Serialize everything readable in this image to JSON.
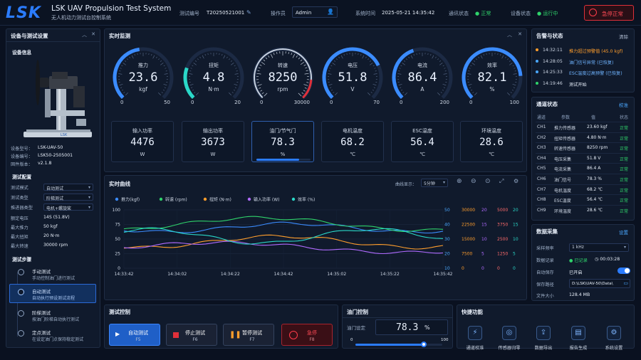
{
  "header": {
    "logo": "LSK",
    "title_en": "LSK UAV Propulsion Test System",
    "title_cn": "无人机动力测试台控制系统",
    "test_no_label": "测试编号",
    "test_no": "T20250521001",
    "operator_label": "操作员",
    "operator": "Admin",
    "systime_label": "系统时间",
    "systime": "2025-05-21  14:35:42",
    "comm_label": "通讯状态",
    "comm_value": "● 正常",
    "device_label": "设备状态",
    "device_value": "● 运行中",
    "estop": "急停正常"
  },
  "left": {
    "title": "设备与测试设置",
    "devinfo": "设备信息",
    "model_label": "设备型号：",
    "model": "LSK-UAV-50",
    "sn_label": "设备编号：",
    "sn": "LSK50-2505001",
    "fw_label": "固件版本：",
    "fw": "v2.1.8",
    "config_title": "测试配置",
    "cfg": [
      {
        "k": "测试模式",
        "v": "自动测试"
      },
      {
        "k": "测试类型",
        "v": "阶梯测试"
      },
      {
        "k": "推进器类型",
        "v": "电机+螺旋桨"
      }
    ],
    "rated": [
      {
        "k": "额定电压",
        "v": "14S (51.8V)"
      },
      {
        "k": "最大推力",
        "v": "50 kgf"
      },
      {
        "k": "最大扭矩",
        "v": "20 N·m"
      },
      {
        "k": "最大转速",
        "v": "30000 rpm"
      }
    ],
    "steps_title": "测试步骤",
    "steps": [
      {
        "a": "手动测试",
        "d": "手动控制油门进行测试"
      },
      {
        "a": "自动测试",
        "d": "自动执行预设测试流程"
      },
      {
        "a": "阶梯测试",
        "d": "按油门阶梯自动执行测试"
      },
      {
        "a": "定点测试",
        "d": "在设定油门点保持稳定测试"
      }
    ]
  },
  "monitor": {
    "title": "实时监测",
    "gauges": [
      {
        "t": "推力",
        "v": "23.6",
        "u": "kgf",
        "min": "0",
        "max": "50",
        "frac": 0.472,
        "color": "#3b8cff"
      },
      {
        "t": "扭矩",
        "v": "4.8",
        "u": "N·m",
        "min": "0",
        "max": "20",
        "frac": 0.24,
        "color": "#2ad8c8"
      },
      {
        "t": "转速",
        "v": "8250",
        "u": "rpm",
        "min": "0",
        "max": "30000",
        "frac": 0.275,
        "color": "#c8d2e0"
      },
      {
        "t": "电压",
        "v": "51.8",
        "u": "V",
        "min": "0",
        "max": "70",
        "frac": 0.74,
        "color": "#3b8cff"
      },
      {
        "t": "电流",
        "v": "86.4",
        "u": "A",
        "min": "0",
        "max": "200",
        "frac": 0.432,
        "color": "#3b8cff"
      },
      {
        "t": "效率",
        "v": "82.1",
        "u": "%",
        "min": "0",
        "max": "100",
        "frac": 0.821,
        "color": "#3b8cff"
      }
    ],
    "cards": [
      {
        "t": "输入功率",
        "v": "4476",
        "u": "W"
      },
      {
        "t": "输出功率",
        "v": "3673",
        "u": "W"
      },
      {
        "t": "油门/节气门",
        "v": "78.3",
        "u": "%",
        "bar": 0.783
      },
      {
        "t": "电机温度",
        "v": "68.2",
        "u": "℃"
      },
      {
        "t": "ESC温度",
        "v": "56.4",
        "u": "℃"
      },
      {
        "t": "环境温度",
        "v": "28.6",
        "u": "℃"
      }
    ]
  },
  "curve": {
    "title": "实时曲线",
    "display_label": "曲线显示：",
    "range": "5分钟",
    "legend": [
      "推力(kgf)",
      "转速 (rpm)",
      "扭矩 (N·m)",
      "输入功率 (W)",
      "效率 (%)"
    ],
    "legend_colors": [
      "#3b8cff",
      "#2fd36b",
      "#ff9e2c",
      "#b06bff",
      "#2ad8c8"
    ],
    "yl": [
      "100",
      "75",
      "50",
      "25",
      "0"
    ],
    "xt": [
      "14:33:42",
      "14:34:02",
      "14:34:22",
      "14:34:42",
      "14:35:02",
      "14:35:22",
      "14:35:42"
    ],
    "r1": [
      "50",
      "40",
      "30",
      "20",
      "10"
    ],
    "r2": [
      "30000",
      "22500",
      "15000",
      "7500",
      "0"
    ],
    "r3": [
      "20",
      "15",
      "10",
      "5",
      "0"
    ],
    "r4": [
      "5000",
      "3750",
      "2500",
      "1250",
      "0"
    ],
    "r5": [
      "20",
      "15",
      "10",
      "5",
      "0"
    ]
  },
  "alarms": {
    "title": "告警与状态",
    "clear": "清除",
    "items": [
      {
        "t": "14:32:11",
        "m": "推力超过预警值 (45.0 kgf)",
        "c": "#ff9e2c"
      },
      {
        "t": "14:28:05",
        "m": "油门信号异常 (已恢复)",
        "c": "#4aa8ff"
      },
      {
        "t": "14:25:33",
        "m": "ESC温度过高预警 (已恢复)",
        "c": "#4aa8ff"
      },
      {
        "t": "14:19:46",
        "m": "测试开始",
        "c": "#2fd36b"
      }
    ]
  },
  "channels": {
    "title": "通道状态",
    "calib": "校准",
    "cols": [
      "通道",
      "参数",
      "值",
      "状态"
    ],
    "rows": [
      [
        "CH1",
        "推力传感器",
        "23.60 kgf",
        "正常"
      ],
      [
        "CH2",
        "扭矩传感器",
        "4.80 N·m",
        "正常"
      ],
      [
        "CH3",
        "转速传感器",
        "8250 rpm",
        "正常"
      ],
      [
        "CH4",
        "电压采集",
        "51.8 V",
        "正常"
      ],
      [
        "CH5",
        "电流采集",
        "86.4 A",
        "正常"
      ],
      [
        "CH6",
        "油门信号",
        "78.3 %",
        "正常"
      ],
      [
        "CH7",
        "电机温度",
        "68.2 ℃",
        "正常"
      ],
      [
        "CH8",
        "ESC温度",
        "56.4 ℃",
        "正常"
      ],
      [
        "CH9",
        "环境温度",
        "28.6 ℃",
        "正常"
      ]
    ]
  },
  "acq": {
    "title": "数据采集",
    "setting": "设置",
    "rate_label": "采样频率",
    "rate": "1 kHz",
    "rec_label": "数据记录",
    "rec_state": "● 已记录",
    "rec_time": "◷ 00:03:28",
    "autosave_label": "自动保存",
    "autosave": "已开启",
    "path_label": "保存路径",
    "path": "D:\\LSK\\UAV-50\\Data\\",
    "size_label": "文件大小",
    "size": "128.4 MB"
  },
  "testctrl": {
    "title": "测试控制",
    "btns": [
      {
        "n": "自动测试",
        "k": "F5"
      },
      {
        "n": "停止测试",
        "k": "F6"
      },
      {
        "n": "暂停测试",
        "k": "F7"
      },
      {
        "n": "急停",
        "k": "F8"
      }
    ]
  },
  "throttle": {
    "title": "油门控制",
    "label": "油门设定",
    "value": "78.3",
    "unit": "%",
    "min": "0",
    "max": "100",
    "frac": 0.783
  },
  "quick": {
    "title": "快捷功能",
    "items": [
      {
        "i": "⚡",
        "l": "通道校准"
      },
      {
        "i": "◎",
        "l": "传感器归零"
      },
      {
        "i": "⇪",
        "l": "数据导出"
      },
      {
        "i": "▤",
        "l": "报告生成"
      },
      {
        "i": "⚙",
        "l": "系统设置"
      }
    ]
  }
}
